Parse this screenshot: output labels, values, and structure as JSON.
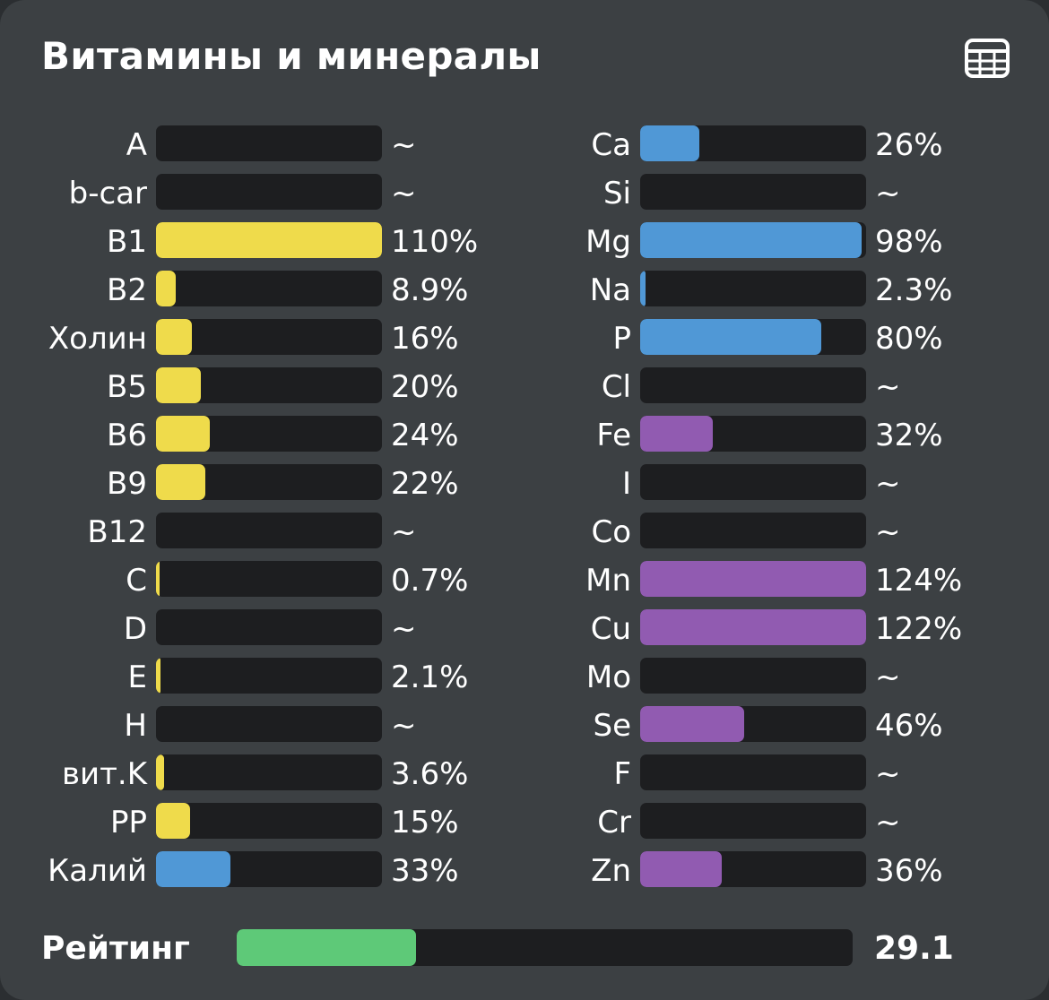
{
  "title": "Витамины и минералы",
  "icons": {
    "table_view": "table-grid-icon"
  },
  "colors": {
    "panel_bg": "#3c4043",
    "track_bg": "#1d1e20",
    "vitamin": "#efdb4b",
    "mineral_blue": "#5098d6",
    "mineral_purple": "#915bb1",
    "rating": "#5ec978"
  },
  "vitamins": [
    {
      "label": "A",
      "value": "~",
      "pct": 0,
      "color": "vitamin"
    },
    {
      "label": "b-car",
      "value": "~",
      "pct": 0,
      "color": "vitamin"
    },
    {
      "label": "B1",
      "value": "110%",
      "pct": 110,
      "color": "vitamin"
    },
    {
      "label": "B2",
      "value": "8.9%",
      "pct": 8.9,
      "color": "vitamin"
    },
    {
      "label": "Холин",
      "value": "16%",
      "pct": 16,
      "color": "vitamin"
    },
    {
      "label": "B5",
      "value": "20%",
      "pct": 20,
      "color": "vitamin"
    },
    {
      "label": "B6",
      "value": "24%",
      "pct": 24,
      "color": "vitamin"
    },
    {
      "label": "B9",
      "value": "22%",
      "pct": 22,
      "color": "vitamin"
    },
    {
      "label": "B12",
      "value": "~",
      "pct": 0,
      "color": "vitamin"
    },
    {
      "label": "C",
      "value": "0.7%",
      "pct": 0.7,
      "color": "vitamin"
    },
    {
      "label": "D",
      "value": "~",
      "pct": 0,
      "color": "vitamin"
    },
    {
      "label": "E",
      "value": "2.1%",
      "pct": 2.1,
      "color": "vitamin"
    },
    {
      "label": "H",
      "value": "~",
      "pct": 0,
      "color": "vitamin"
    },
    {
      "label": "вит.K",
      "value": "3.6%",
      "pct": 3.6,
      "color": "vitamin"
    },
    {
      "label": "PP",
      "value": "15%",
      "pct": 15,
      "color": "vitamin"
    },
    {
      "label": "Калий",
      "value": "33%",
      "pct": 33,
      "color": "mineral_blue"
    }
  ],
  "minerals": [
    {
      "label": "Ca",
      "value": "26%",
      "pct": 26,
      "color": "mineral_blue"
    },
    {
      "label": "Si",
      "value": "~",
      "pct": 0,
      "color": "mineral_blue"
    },
    {
      "label": "Mg",
      "value": "98%",
      "pct": 98,
      "color": "mineral_blue"
    },
    {
      "label": "Na",
      "value": "2.3%",
      "pct": 2.3,
      "color": "mineral_blue"
    },
    {
      "label": "P",
      "value": "80%",
      "pct": 80,
      "color": "mineral_blue"
    },
    {
      "label": "Cl",
      "value": "~",
      "pct": 0,
      "color": "mineral_blue"
    },
    {
      "label": "Fe",
      "value": "32%",
      "pct": 32,
      "color": "mineral_purple"
    },
    {
      "label": "I",
      "value": "~",
      "pct": 0,
      "color": "mineral_purple"
    },
    {
      "label": "Co",
      "value": "~",
      "pct": 0,
      "color": "mineral_purple"
    },
    {
      "label": "Mn",
      "value": "124%",
      "pct": 124,
      "color": "mineral_purple"
    },
    {
      "label": "Cu",
      "value": "122%",
      "pct": 122,
      "color": "mineral_purple"
    },
    {
      "label": "Mo",
      "value": "~",
      "pct": 0,
      "color": "mineral_purple"
    },
    {
      "label": "Se",
      "value": "46%",
      "pct": 46,
      "color": "mineral_purple"
    },
    {
      "label": "F",
      "value": "~",
      "pct": 0,
      "color": "mineral_purple"
    },
    {
      "label": "Cr",
      "value": "~",
      "pct": 0,
      "color": "mineral_purple"
    },
    {
      "label": "Zn",
      "value": "36%",
      "pct": 36,
      "color": "mineral_purple"
    }
  ],
  "rating": {
    "label": "Рейтинг",
    "value": "29.1",
    "fill_fraction": 0.291,
    "color": "rating"
  }
}
